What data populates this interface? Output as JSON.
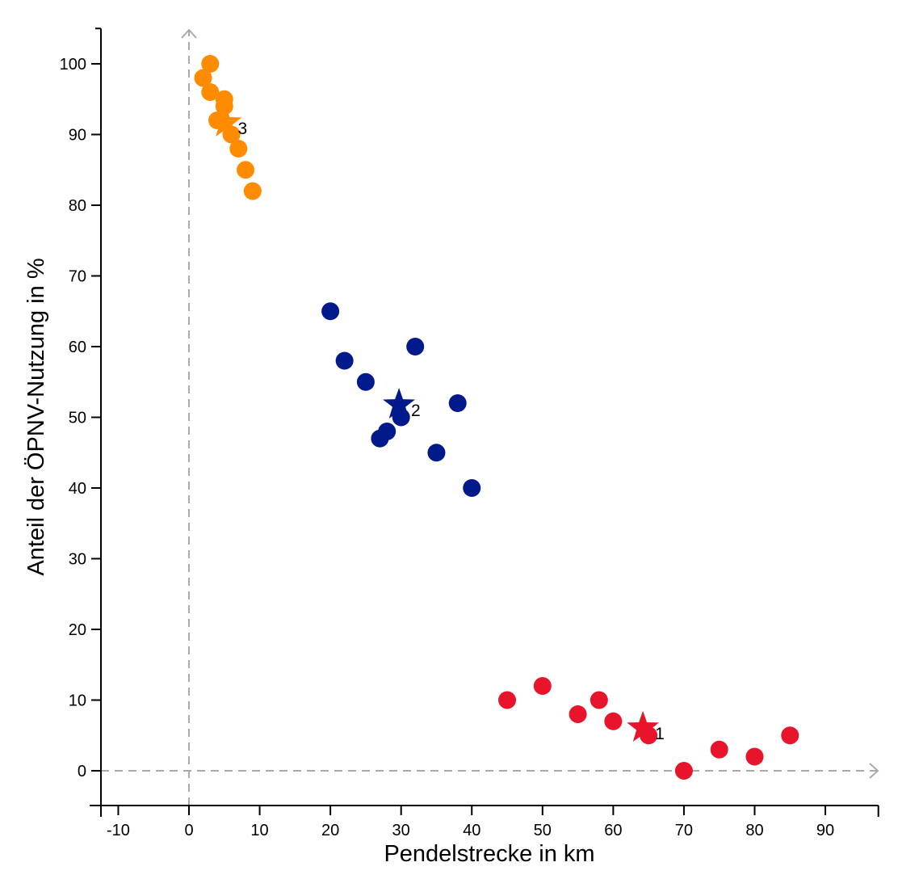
{
  "chart_data": {
    "type": "scatter",
    "title": "",
    "xlabel": "Pendelstrecke in km",
    "ylabel": "Anteil der ÖPNV-Nutzung in %",
    "xlim": [
      -12.4,
      97.5
    ],
    "ylim": [
      -5,
      105
    ],
    "xticks": [
      -10,
      0,
      10,
      20,
      30,
      40,
      50,
      60,
      70,
      80,
      90
    ],
    "yticks": [
      0,
      10,
      20,
      30,
      40,
      50,
      60,
      70,
      80,
      90,
      100
    ],
    "grid": false,
    "reference_lines": [
      "x=0 dashed arrow",
      "y=0 dashed arrow"
    ],
    "reference_color": "#aaaaaa",
    "series": [
      {
        "name": "Cluster 1",
        "color": "#e8142b",
        "points": [
          [
            45,
            10
          ],
          [
            50,
            12
          ],
          [
            55,
            8
          ],
          [
            58,
            10
          ],
          [
            60,
            7
          ],
          [
            65,
            5
          ],
          [
            70,
            0
          ],
          [
            75,
            3
          ],
          [
            80,
            2
          ],
          [
            85,
            5
          ]
        ],
        "centroid": [
          64.2,
          6.3
        ],
        "centroid_label": "1"
      },
      {
        "name": "Cluster 2",
        "color": "#001a8c",
        "points": [
          [
            20,
            65
          ],
          [
            22,
            58
          ],
          [
            25,
            55
          ],
          [
            32,
            60
          ],
          [
            38,
            52
          ],
          [
            30,
            50
          ],
          [
            28,
            48
          ],
          [
            27,
            47
          ],
          [
            35,
            45
          ],
          [
            40,
            40
          ]
        ],
        "centroid": [
          29.7,
          52
        ],
        "centroid_label": "2"
      },
      {
        "name": "Cluster 3",
        "color": "#ff8c00",
        "points": [
          [
            3,
            100
          ],
          [
            2,
            98
          ],
          [
            3,
            96
          ],
          [
            5,
            95
          ],
          [
            5,
            94
          ],
          [
            4,
            92
          ],
          [
            6,
            90
          ],
          [
            7,
            88
          ],
          [
            8,
            85
          ],
          [
            9,
            82
          ]
        ],
        "centroid": [
          5.2,
          91.9
        ],
        "centroid_label": "3"
      }
    ]
  }
}
